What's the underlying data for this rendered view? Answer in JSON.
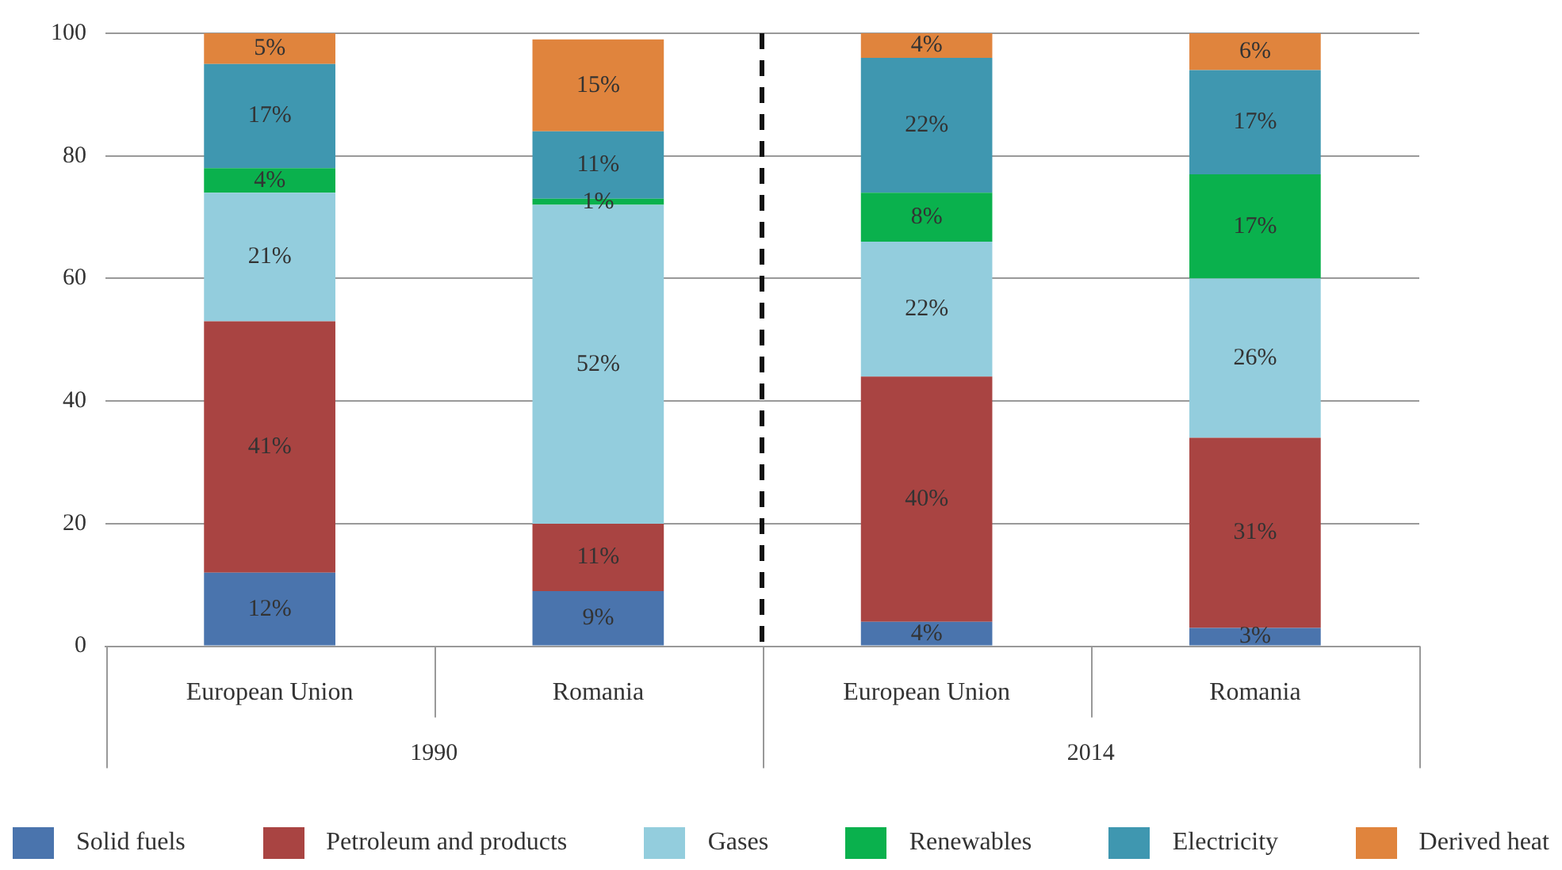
{
  "chart_data": {
    "type": "bar",
    "stacked": true,
    "categories": [
      "European Union",
      "Romania",
      "European Union",
      "Romania"
    ],
    "ylim": [
      0,
      100
    ],
    "yticks": [
      0,
      20,
      40,
      60,
      80,
      100
    ],
    "grid": "y",
    "legend": "bottom",
    "series": [
      {
        "name": "Solid fuels",
        "color": "#4a74ad",
        "values": [
          12,
          9,
          4,
          3
        ],
        "value_labels": [
          "12%",
          "9%",
          "4%",
          "3%"
        ]
      },
      {
        "name": "Petroleum and products",
        "color": "#a94442",
        "values": [
          41,
          11,
          40,
          31
        ],
        "value_labels": [
          "41%",
          "11%",
          "40%",
          "31%"
        ]
      },
      {
        "name": "Gases",
        "color": "#93cddd",
        "values": [
          21,
          52,
          22,
          26
        ],
        "value_labels": [
          "21%",
          "52%",
          "22%",
          "26%"
        ]
      },
      {
        "name": "Renewables",
        "color": "#0ab14d",
        "values": [
          4,
          1,
          8,
          17
        ],
        "value_labels": [
          "4%",
          "1%",
          "8%",
          "17%"
        ]
      },
      {
        "name": "Electricity",
        "color": "#3f97b0",
        "values": [
          17,
          11,
          22,
          17
        ],
        "value_labels": [
          "17%",
          "11%",
          "22%",
          "17%"
        ]
      },
      {
        "name": "Derived heat",
        "color": "#e0843d",
        "values": [
          5,
          15,
          4,
          6
        ],
        "value_labels": [
          "5%",
          "15%",
          "4%",
          "6%"
        ]
      }
    ],
    "annotations": [
      "1990",
      "2014"
    ]
  }
}
